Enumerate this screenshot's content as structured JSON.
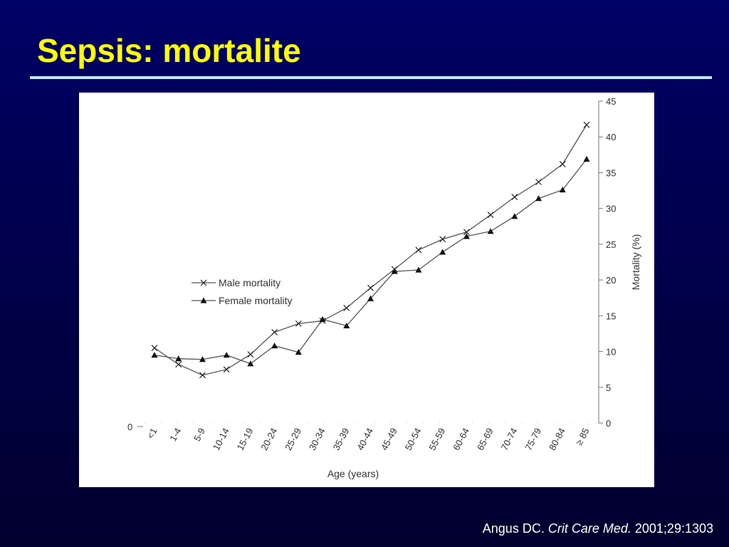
{
  "slide": {
    "title": "Sepsis: mortalite",
    "citation": {
      "author": "Angus DC.",
      "journal": "Crit Care Med.",
      "ref": "2001;29:1303"
    },
    "title_color": "#ffff00",
    "background_color": "#000066"
  },
  "chart_data": {
    "type": "line",
    "xlabel": "Age (years)",
    "ylabel": "Mortality (%)",
    "ylim": [
      0,
      45
    ],
    "yticks": [
      0,
      5,
      10,
      15,
      20,
      25,
      30,
      35,
      40,
      45
    ],
    "y_axis_side": "right",
    "grid": false,
    "legend_position": "left-middle",
    "categories": [
      "<1",
      "1-4",
      "5-9",
      "10-14",
      "15-19",
      "20-24",
      "25-29",
      "30-34",
      "35-39",
      "40-44",
      "45-49",
      "50-54",
      "55-59",
      "60-64",
      "65-69",
      "70-74",
      "75-79",
      "80-84",
      "≥ 85"
    ],
    "series": [
      {
        "name": "Male mortality",
        "marker": "x",
        "values": [
          10.5,
          8.2,
          6.7,
          7.5,
          9.6,
          12.7,
          13.9,
          14.3,
          16.1,
          18.9,
          21.5,
          24.2,
          25.7,
          26.7,
          29.1,
          31.6,
          33.7,
          36.2,
          41.7
        ]
      },
      {
        "name": "Female mortality",
        "marker": "triangle",
        "values": [
          9.5,
          9.0,
          8.9,
          9.5,
          8.3,
          10.8,
          9.9,
          14.5,
          13.6,
          17.4,
          21.2,
          21.4,
          23.9,
          26.1,
          26.8,
          28.9,
          31.4,
          32.6,
          36.9
        ]
      }
    ],
    "left_axis_label": "0"
  }
}
